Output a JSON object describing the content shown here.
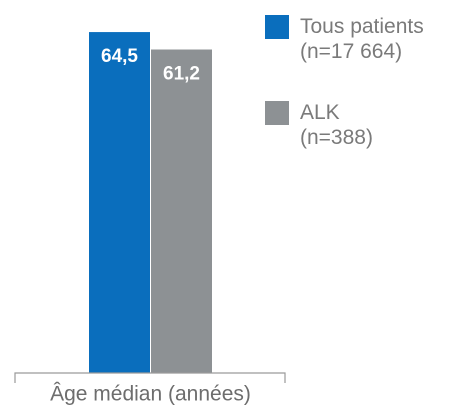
{
  "chart_data": {
    "type": "bar",
    "categories": [
      "Âge médian (années)"
    ],
    "series": [
      {
        "name": "Tous patients (n=17 664)",
        "color": "#0a6ebd",
        "values": [
          64.5
        ],
        "value_labels": [
          "64,5"
        ]
      },
      {
        "name": "ALK (n=388)",
        "color": "#8d9194",
        "values": [
          61.2
        ],
        "value_labels": [
          "61,2"
        ]
      }
    ],
    "ylim": [
      0,
      70
    ],
    "legend": "right"
  }
}
